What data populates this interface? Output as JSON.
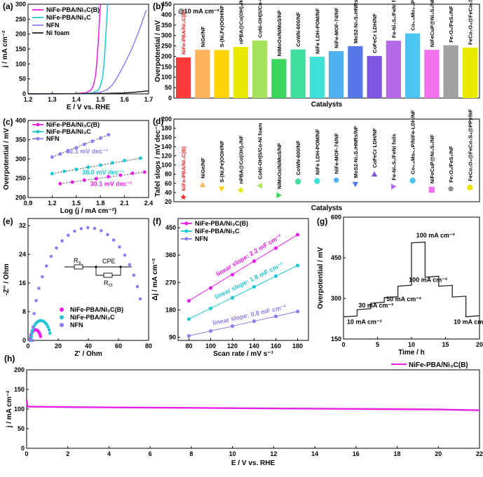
{
  "figure": {
    "panels": [
      "(a)",
      "(b)",
      "(c)",
      "(d)",
      "(e)",
      "(f)",
      "(g)",
      "(h)"
    ]
  },
  "colors": {
    "nife_b": "#e81ee8",
    "nife": "#1ec7d2",
    "nfn": "#8c7ef0",
    "nifoam": "#222222",
    "axis": "#000000"
  },
  "chart_data": [
    {
      "panel": "(a)",
      "type": "line",
      "title": "",
      "xlabel": "E / V vs. RHE",
      "ylabel": "j / mA cm⁻²",
      "xlim": [
        1.2,
        1.7
      ],
      "ylim": [
        0,
        300
      ],
      "xticks": [
        1.2,
        1.3,
        1.4,
        1.5,
        1.6,
        1.7
      ],
      "yticks": [
        0,
        50,
        100,
        150,
        200,
        250,
        300
      ],
      "legend": "top-left",
      "series": [
        {
          "name": "NiFe-PBA/Ni₃C(B)",
          "color": "#e81ee8",
          "x": [
            1.2,
            1.4,
            1.44,
            1.46,
            1.47,
            1.48,
            1.485,
            1.49,
            1.495,
            1.5
          ],
          "y": [
            0,
            1,
            4,
            12,
            25,
            60,
            100,
            160,
            230,
            300
          ]
        },
        {
          "name": "NiFe-PBA/Ni₃C",
          "color": "#1ec7d2",
          "x": [
            1.2,
            1.43,
            1.47,
            1.49,
            1.5,
            1.51,
            1.515,
            1.52,
            1.525,
            1.53
          ],
          "y": [
            0,
            1,
            4,
            12,
            25,
            60,
            100,
            160,
            230,
            300
          ]
        },
        {
          "name": "NFN",
          "color": "#8c7ef0",
          "x": [
            1.2,
            1.45,
            1.5,
            1.53,
            1.55,
            1.57,
            1.6,
            1.63,
            1.66,
            1.69
          ],
          "y": [
            0,
            1,
            5,
            15,
            30,
            55,
            100,
            150,
            210,
            280
          ]
        },
        {
          "name": "Ni foam",
          "color": "#222222",
          "x": [
            1.2,
            1.5,
            1.55,
            1.6,
            1.65,
            1.7
          ],
          "y": [
            0,
            1,
            2,
            3,
            6,
            10
          ]
        }
      ]
    },
    {
      "panel": "(b)",
      "type": "bar",
      "annotation": "@10 mA cm⁻²",
      "xlabel": "Catalysts",
      "ylabel": "Overpotential / mV",
      "ylim": [
        0,
        450
      ],
      "yticks": [
        0,
        50,
        100,
        150,
        200,
        250,
        300,
        350,
        400,
        450
      ],
      "categories": [
        "NiFe-PBA/Ni₃C(B)",
        "NiGe/NF",
        "S-(Ni,Fe)OOH/NF",
        "nPBA@Co(OH)₂/NF",
        "CoNi-OH|S/Co-Ni foam",
        "NiMoOx/NiMoS/NF",
        "CoWN-600/NF",
        "NiFe LDH-POM/NF",
        "NiFe-MOF-74/NF",
        "MoS2-Ni₃S₂HNRs/NF",
        "CoFeCr LDH/NF",
        "Fe-Ni₃S₂/FeNi foils",
        "Co₀.₈Mo₀.₂P/NiFe-LDH/NF",
        "NiFeCuP@Ni₃S₂/NF",
        "Fe₇O₈/FeS₂/NF",
        "FeCo₂O₄@FeCo₂S₄@PPy/NF"
      ],
      "values": [
        195,
        231,
        230,
        245,
        276,
        187,
        233,
        198,
        225,
        249,
        202,
        275,
        310,
        231,
        253,
        242
      ],
      "colors": [
        "#ff3a3a",
        "#ffb35a",
        "#ffd400",
        "#e9e900",
        "#a7e25c",
        "#39d65b",
        "#3ee0a0",
        "#3fe0d8",
        "#4fb2f0",
        "#5577e8",
        "#7d55e0",
        "#b46ae8",
        "#4cc6f0",
        "#f070ee",
        "#a0a0a0",
        "#e9e900"
      ]
    },
    {
      "panel": "(c)",
      "type": "scatter",
      "xlabel": "Log (j / mA cm⁻²)",
      "ylabel": "Overpotential / mV",
      "xlim": [
        0.9,
        2.4
      ],
      "ylim": [
        200,
        400
      ],
      "xticks": [
        0.9,
        1.2,
        1.5,
        1.8,
        2.1,
        2.4
      ],
      "yticks": [
        200,
        250,
        300,
        350,
        400
      ],
      "legend": "top-left",
      "series": [
        {
          "name": "NiFe-PBA/Ni₃C(B)",
          "color": "#e81ee8",
          "x": [
            1.3,
            1.45,
            1.6,
            1.75,
            1.9,
            2.05,
            2.2,
            2.35
          ],
          "y": [
            236,
            240,
            245,
            249,
            254,
            258,
            263,
            266
          ],
          "label": "30.1 mV dec⁻¹"
        },
        {
          "name": "NiFe-PBA/Ni₃C",
          "color": "#1ec7d2",
          "x": [
            1.2,
            1.35,
            1.5,
            1.65,
            1.8,
            1.95,
            2.1,
            2.3
          ],
          "y": [
            262,
            268,
            273,
            279,
            284,
            290,
            296,
            302
          ],
          "label": "38.0 mV dec⁻¹"
        },
        {
          "name": "NFN",
          "color": "#8c7ef0",
          "x": [
            1.2,
            1.3,
            1.4,
            1.5,
            1.6,
            1.7,
            1.8,
            1.9
          ],
          "y": [
            305,
            313,
            321,
            329,
            338,
            346,
            354,
            363
          ],
          "label": "82.1 mV dec⁻¹"
        }
      ]
    },
    {
      "panel": "(d)",
      "type": "scatter",
      "xlabel": "Catalysts",
      "ylabel": "Tafel slops / mV dec⁻¹",
      "ylim": [
        20,
        200
      ],
      "yticks": [
        20,
        40,
        60,
        80,
        100,
        120,
        140,
        160,
        180,
        200
      ],
      "categories": [
        "NiFe-PBA/Ni₃C(B)",
        "NiGe/NF",
        "S-(Ni,Fe)OOH/NF",
        "nPBA@Co(OH)₂/NF",
        "CoNi-OH|S/Co-Ni foam",
        "NiMoOx/NiMoS/NF",
        "CoWN-600/NF",
        "NiFe LDH-POM/NF",
        "NiFe-MOF-74/NF",
        "MoS2-Ni₃S₂HNRs/NF",
        "CoFeCr LDH/NF",
        "Fe-Ni₃S₂/FeNi foils",
        "Co₀.₈Mo₀.₂P/NiFe-LDH/NF",
        "NiFeCuP@Ni₃S₂/NF",
        "Fe₇O₈/FeS₂/NF",
        "FeCo₂O₄@FeCo₂S₄@PPy/NF"
      ],
      "values": [
        30,
        57,
        48,
        45,
        55,
        34,
        64,
        65,
        67,
        58,
        80,
        53,
        66,
        46,
        48,
        51
      ],
      "markers": [
        "star",
        "triangle-up",
        "triangle-down",
        "diamond",
        "triangle-left",
        "triangle-right",
        "circle",
        "circle",
        "pentagon",
        "triangle-down",
        "triangle-up",
        "triangle-right",
        "circle",
        "square",
        "pentagon",
        "circle"
      ],
      "colors": [
        "#ff2020",
        "#ffb35a",
        "#ffd400",
        "#e9e900",
        "#a7e25c",
        "#39d65b",
        "#3ee0a0",
        "#3fe0d8",
        "#4fb2f0",
        "#5577e8",
        "#7d55e0",
        "#b46ae8",
        "#4cc6f0",
        "#f070ee",
        "#909090",
        "#e9e900"
      ]
    },
    {
      "panel": "(e)",
      "type": "scatter",
      "xlabel": "Z' / Ohm",
      "ylabel": "-Z'' / Ohm",
      "xlim": [
        0,
        80
      ],
      "ylim": [
        0,
        34
      ],
      "xticks": [
        0,
        20,
        40,
        60,
        80
      ],
      "yticks": [
        0,
        8,
        16,
        24,
        32
      ],
      "legend": "bottom-center",
      "circuit_labels": {
        "rs": "R",
        "rs_sub": "s",
        "cpe": "CPE",
        "rct": "R",
        "rct_sub": "ct"
      },
      "series": [
        {
          "name": "NiFe-PBA/Ni₃C(B)",
          "color": "#e81ee8",
          "rs": 1.5,
          "rct": 7,
          "points": 14
        },
        {
          "name": "NiFe-PBA/Ni₃C",
          "color": "#1ec7d2",
          "rs": 2.0,
          "rct": 13,
          "points": 16
        },
        {
          "name": "NFN",
          "color": "#8c7ef0",
          "rs": 3.0,
          "rct": 74,
          "points": 24
        }
      ]
    },
    {
      "panel": "(f)",
      "type": "scatter",
      "xlabel": "Scan rate / mV s⁻¹",
      "ylabel": "Δj / mA cm⁻²",
      "xlim": [
        70,
        190
      ],
      "ylim": [
        80,
        480
      ],
      "xticks": [
        80,
        100,
        120,
        140,
        160,
        180
      ],
      "yticks": [
        90,
        180,
        270,
        360,
        450
      ],
      "legend": "top-left",
      "series": [
        {
          "name": "NiFe-PBA/Ni₃C(B)",
          "color": "#e81ee8",
          "x": [
            80,
            100,
            120,
            140,
            160,
            180
          ],
          "y": [
            210,
            252,
            296,
            340,
            383,
            427
          ],
          "label": "linear slope: 2.2 mF cm⁻²"
        },
        {
          "name": "NiFe-PBA/Ni₃C",
          "color": "#1ec7d2",
          "x": [
            80,
            100,
            120,
            140,
            160,
            180
          ],
          "y": [
            150,
            185,
            220,
            256,
            291,
            326
          ],
          "label": "linear slope: 1.8 mF cm⁻²"
        },
        {
          "name": "NFN",
          "color": "#8c7ef0",
          "x": [
            80,
            100,
            120,
            140,
            160,
            180
          ],
          "y": [
            95,
            111,
            127,
            143,
            159,
            175
          ],
          "label": "linear slope: 0.8 mF cm⁻²"
        }
      ]
    },
    {
      "panel": "(g)",
      "type": "line",
      "xlabel": "Time / h",
      "ylabel": "Overpotential / mV",
      "xlim": [
        0,
        20
      ],
      "ylim": [
        150,
        600
      ],
      "xticks": [
        0,
        5,
        10,
        15,
        20
      ],
      "yticks": [
        150,
        300,
        450,
        600
      ],
      "series": [
        {
          "name": "NiFe-PBA/Ni₃C(B)",
          "color": "#222222",
          "x": [
            0,
            2,
            2,
            4,
            4,
            6,
            6,
            8,
            8,
            10,
            10,
            12,
            12,
            14,
            14,
            16,
            16,
            18,
            18,
            20
          ],
          "y": [
            232,
            235,
            258,
            262,
            282,
            286,
            303,
            306,
            345,
            349,
            505,
            508,
            378,
            382,
            345,
            348,
            305,
            308,
            232,
            236
          ]
        }
      ],
      "annotations": [
        "10 mA cm⁻²",
        "30 mA cm⁻²",
        "50 mA cm⁻²",
        "100 mA cm⁻²",
        "100 mA cm⁻²",
        "10 mA cm⁻²"
      ]
    },
    {
      "panel": "(h)",
      "type": "line",
      "xlabel": "E / V vs. RHE",
      "ylabel": "j / mA cm⁻²",
      "xlim": [
        0,
        22
      ],
      "ylim": [
        0,
        200
      ],
      "xticks": [
        0,
        2,
        4,
        6,
        8,
        10,
        12,
        14,
        16,
        18,
        20,
        22
      ],
      "yticks": [
        0,
        50,
        100,
        150,
        200
      ],
      "legend": "top-right",
      "series": [
        {
          "name": "NiFe-PBA/Ni₃C(B)",
          "color": "#e81ee8",
          "x": [
            0,
            0.05,
            0.3,
            2,
            5,
            8,
            11,
            14,
            17,
            20,
            22
          ],
          "y": [
            124,
            106,
            106,
            105,
            104,
            103,
            102,
            101,
            100,
            99,
            97
          ]
        }
      ]
    }
  ]
}
